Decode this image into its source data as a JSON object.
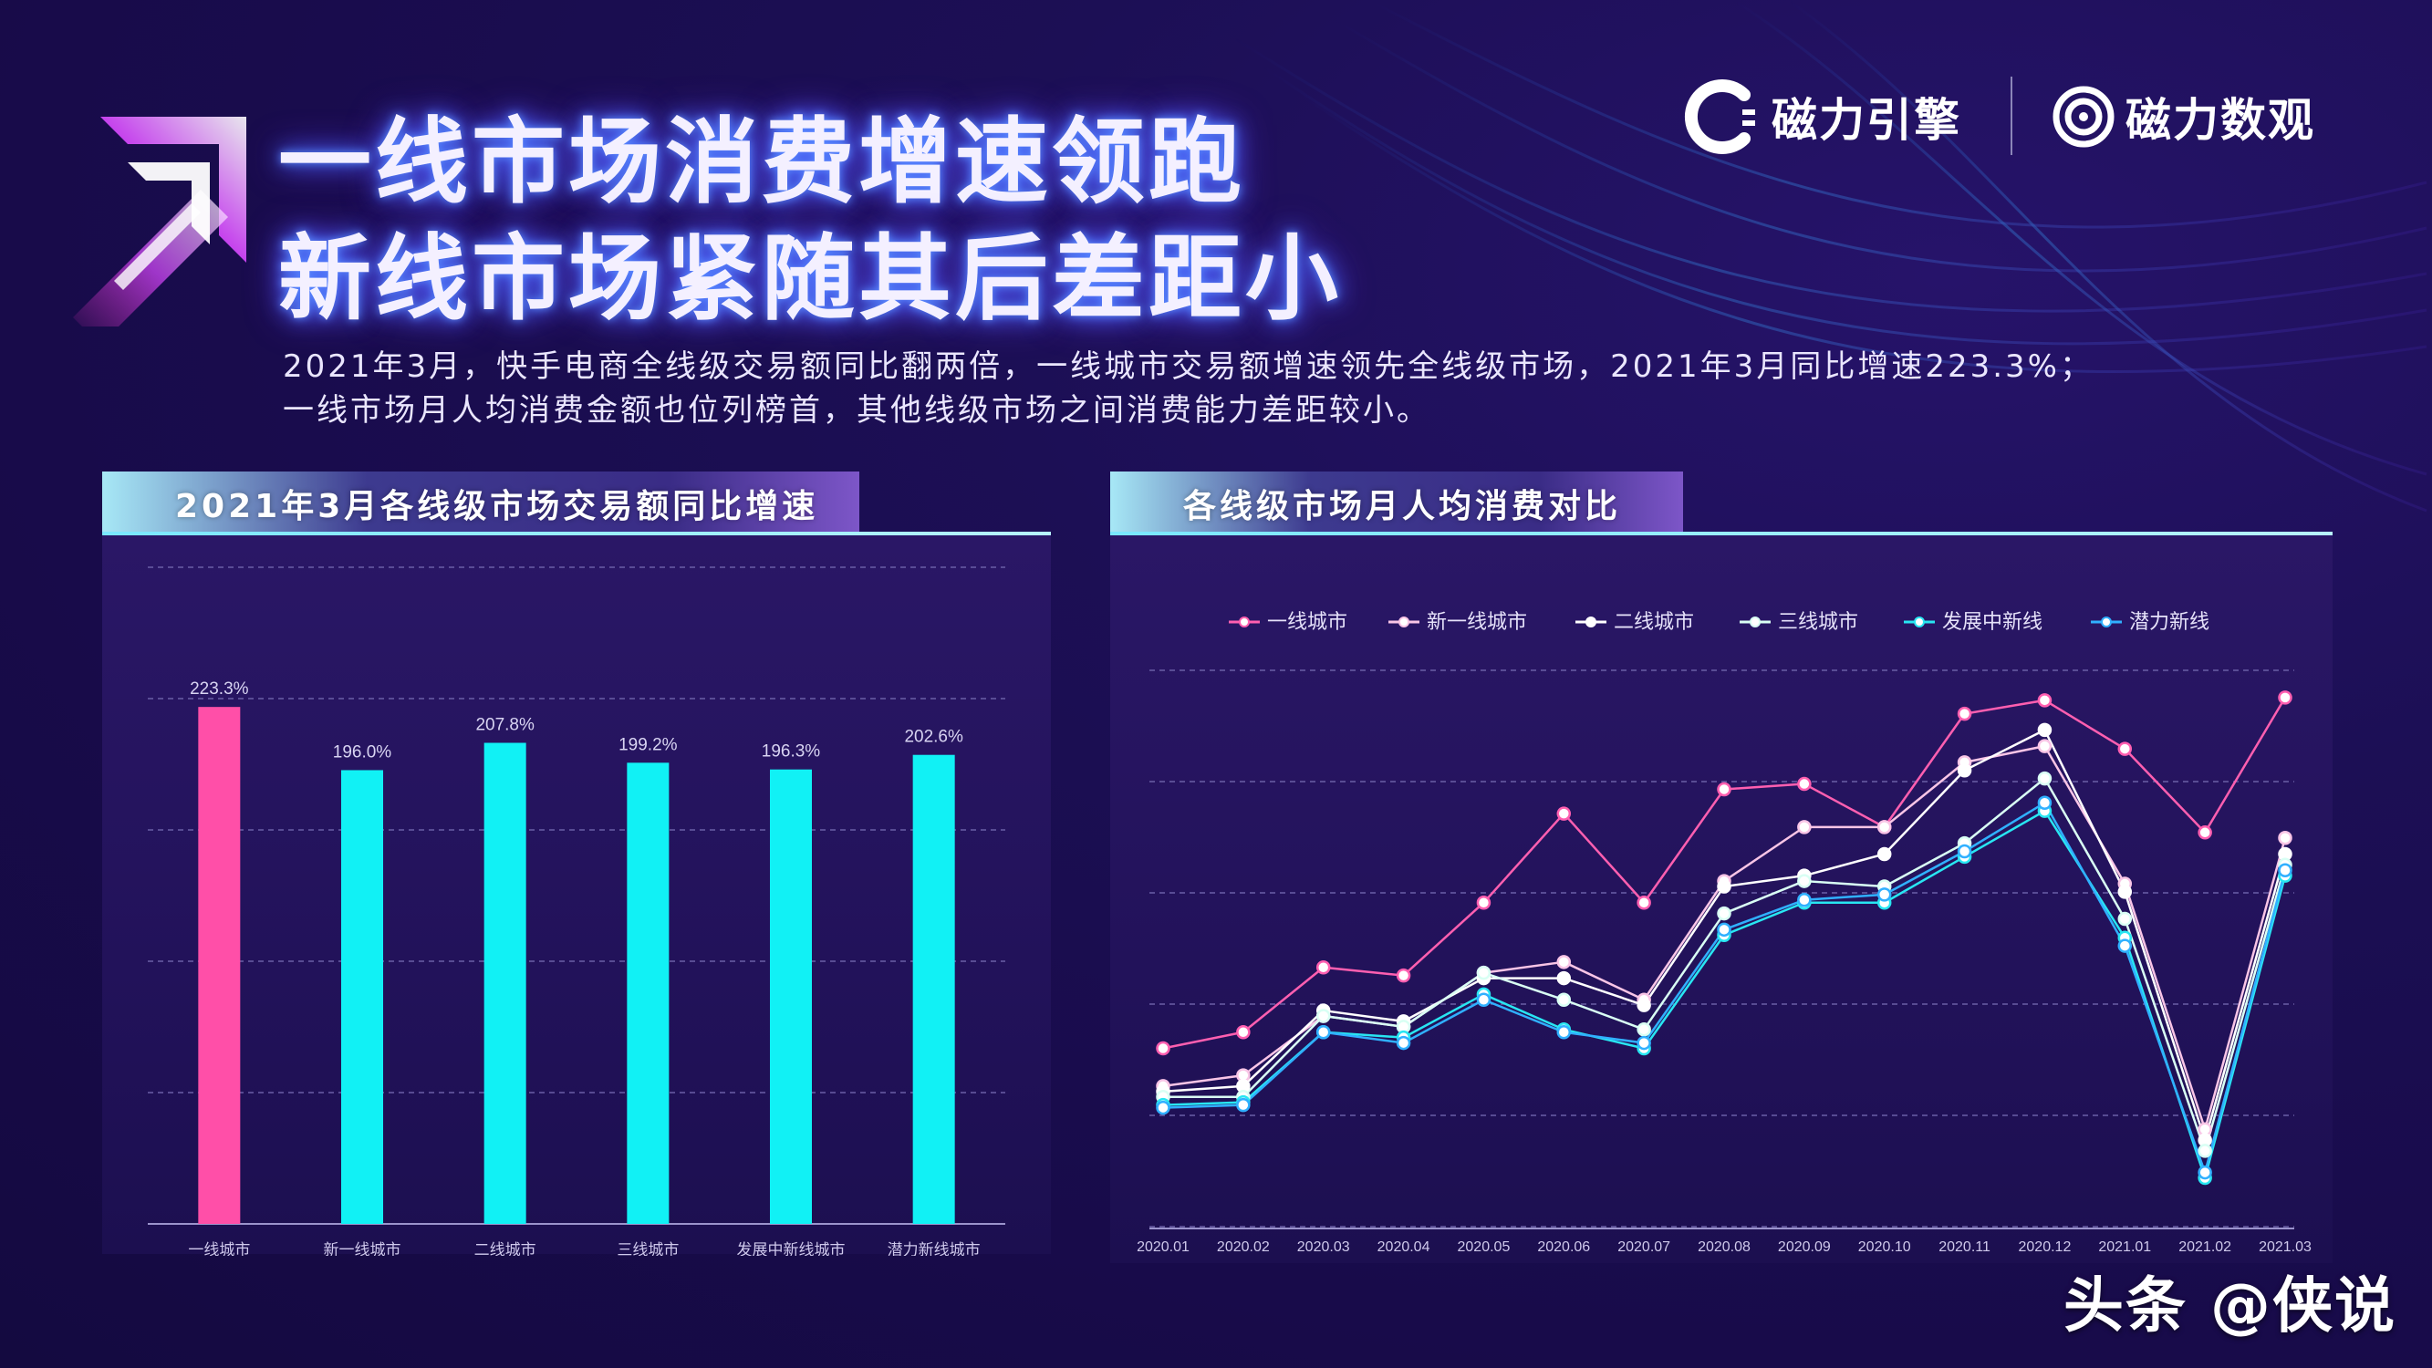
{
  "header": {
    "title_line1": "一线市场消费增速领跑",
    "title_line2": "新线市场紧随其后差距小"
  },
  "summary": {
    "line1": "2021年3月，快手电商全线级交易额同比翻两倍，一线城市交易额增速领先全线级市场，2021年3月同比增速223.3%；",
    "line2": "一线市场月人均消费金额也位列榜首，其他线级市场之间消费能力差距较小。"
  },
  "brands": {
    "brand1": "磁力引擎",
    "brand2": "磁力数观"
  },
  "colors": {
    "pink": "#ff4fa8",
    "cyan": "#11f1f5"
  },
  "watermark": "头条 @侠说",
  "chart_data": [
    {
      "type": "bar",
      "title": "2021年3月各线级市场交易额同比增速",
      "categories": [
        "一线城市",
        "新一线城市",
        "二线城市",
        "三线城市",
        "发展中新线城市",
        "潜力新线城市"
      ],
      "values": [
        223.3,
        196.0,
        207.8,
        199.2,
        196.3,
        202.6
      ],
      "labels": [
        "223.3%",
        "196.0%",
        "207.8%",
        "199.2%",
        "196.3%",
        "202.6%"
      ],
      "colors": [
        "#ff4fa8",
        "#11f1f5",
        "#11f1f5",
        "#11f1f5",
        "#11f1f5",
        "#11f1f5"
      ],
      "grid": true
    },
    {
      "type": "line",
      "title": "各线级市场月人均消费对比",
      "legend_position": "top",
      "x": [
        "2020.01",
        "2020.02",
        "2020.03",
        "2020.04",
        "2020.05",
        "2020.06",
        "2020.07",
        "2020.08",
        "2020.09",
        "2020.10",
        "2020.11",
        "2020.12",
        "2021.01",
        "2021.02",
        "2021.03"
      ],
      "ylim": [
        0,
        10
      ],
      "grid": true,
      "series": [
        {
          "name": "一线城市",
          "color": "#ff5fb0",
          "values": [
            3.0,
            3.3,
            4.5,
            4.35,
            5.7,
            7.35,
            5.7,
            7.8,
            7.9,
            7.1,
            9.2,
            9.45,
            8.55,
            7.0,
            9.5
          ]
        },
        {
          "name": "新一线城市",
          "color": "#f9c5e6",
          "values": [
            2.3,
            2.5,
            3.6,
            3.4,
            4.4,
            4.6,
            3.9,
            6.1,
            7.1,
            7.1,
            8.3,
            8.6,
            6.05,
            1.5,
            6.9
          ]
        },
        {
          "name": "二线城市",
          "color": "#ffffff",
          "values": [
            2.2,
            2.3,
            3.7,
            3.5,
            4.3,
            4.3,
            3.8,
            6.0,
            6.2,
            6.6,
            8.15,
            8.9,
            5.9,
            1.3,
            6.6
          ]
        },
        {
          "name": "三线城市",
          "color": "#d9fff4",
          "values": [
            2.1,
            2.1,
            3.6,
            3.4,
            4.4,
            3.9,
            3.35,
            5.5,
            6.1,
            6.0,
            6.8,
            8.0,
            5.4,
            1.1,
            6.4
          ]
        },
        {
          "name": "发展中新线",
          "color": "#28e6f2",
          "values": [
            1.95,
            2.0,
            3.3,
            3.2,
            4.0,
            3.35,
            3.0,
            5.1,
            5.7,
            5.7,
            6.55,
            7.4,
            5.05,
            0.6,
            6.2
          ]
        },
        {
          "name": "潜力新线",
          "color": "#30b0ff",
          "values": [
            1.9,
            1.95,
            3.3,
            3.1,
            3.9,
            3.3,
            3.1,
            5.2,
            5.75,
            5.85,
            6.65,
            7.55,
            4.9,
            0.7,
            6.3
          ]
        }
      ]
    }
  ]
}
